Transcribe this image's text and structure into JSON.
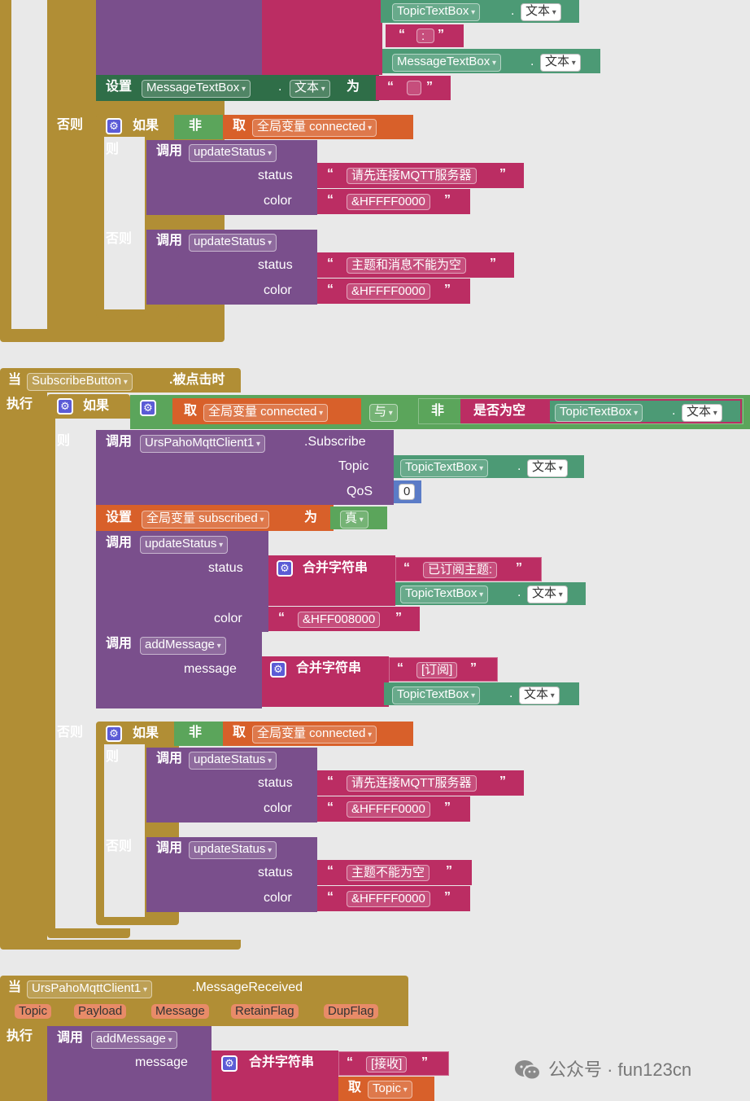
{
  "labels": {
    "set": "设置",
    "to": "为",
    "else": "否则",
    "if": "如果",
    "then": "则",
    "not": "非",
    "get": "取",
    "call": "调用",
    "status": "status",
    "color": "color",
    "when": "当",
    "do": "执行",
    "and": "与",
    "is_empty": "是否为空",
    "join": "合并字符串",
    "message": "message",
    "topic_param": "Topic",
    "qos_param": "QoS",
    "text_prop": "文本",
    "clicked": ".被点击时",
    "subscribe_method": ".Subscribe",
    "message_received": ".MessageReceived",
    "gear": "⚙",
    "open_quote": "“",
    "close_quote": "”",
    "dot": "."
  },
  "components": {
    "topic_textbox": "TopicTextBox",
    "message_textbox": "MessageTextBox",
    "subscribe_button": "SubscribeButton",
    "mqtt_client": "UrsPahoMqttClient1"
  },
  "globals": {
    "connected": "全局变量 connected",
    "subscribed": "全局变量 subscribed"
  },
  "procedures": {
    "update_status": "updateStatus",
    "add_message": "addMessage"
  },
  "strings": {
    "colon": ":",
    "empty": "",
    "connect_first": "请先连接MQTT服务器",
    "red": "&HFFFF0000",
    "topic_msg_empty": "主题和消息不能为空",
    "subscribed_topic": "已订阅主题:",
    "green": "&HFF008000",
    "subscribe_tag": "[订阅]",
    "topic_empty": "主题不能为空",
    "received_tag": "[接收]"
  },
  "values": {
    "qos": "0",
    "true_value": "真"
  },
  "event_params": [
    "Topic",
    "Payload",
    "Message",
    "RetainFlag",
    "DupFlag"
  ],
  "watermark": {
    "icon": "wechat-icon",
    "text": "公众号 · fun123cn"
  },
  "colors": {
    "control": "#b18e35",
    "procedure": "#7a4f8c",
    "text": "#bb2d63",
    "component": "#4c9a75",
    "variable": "#d8602a",
    "logic": "#5ba55b",
    "math": "#5b7cc7"
  }
}
